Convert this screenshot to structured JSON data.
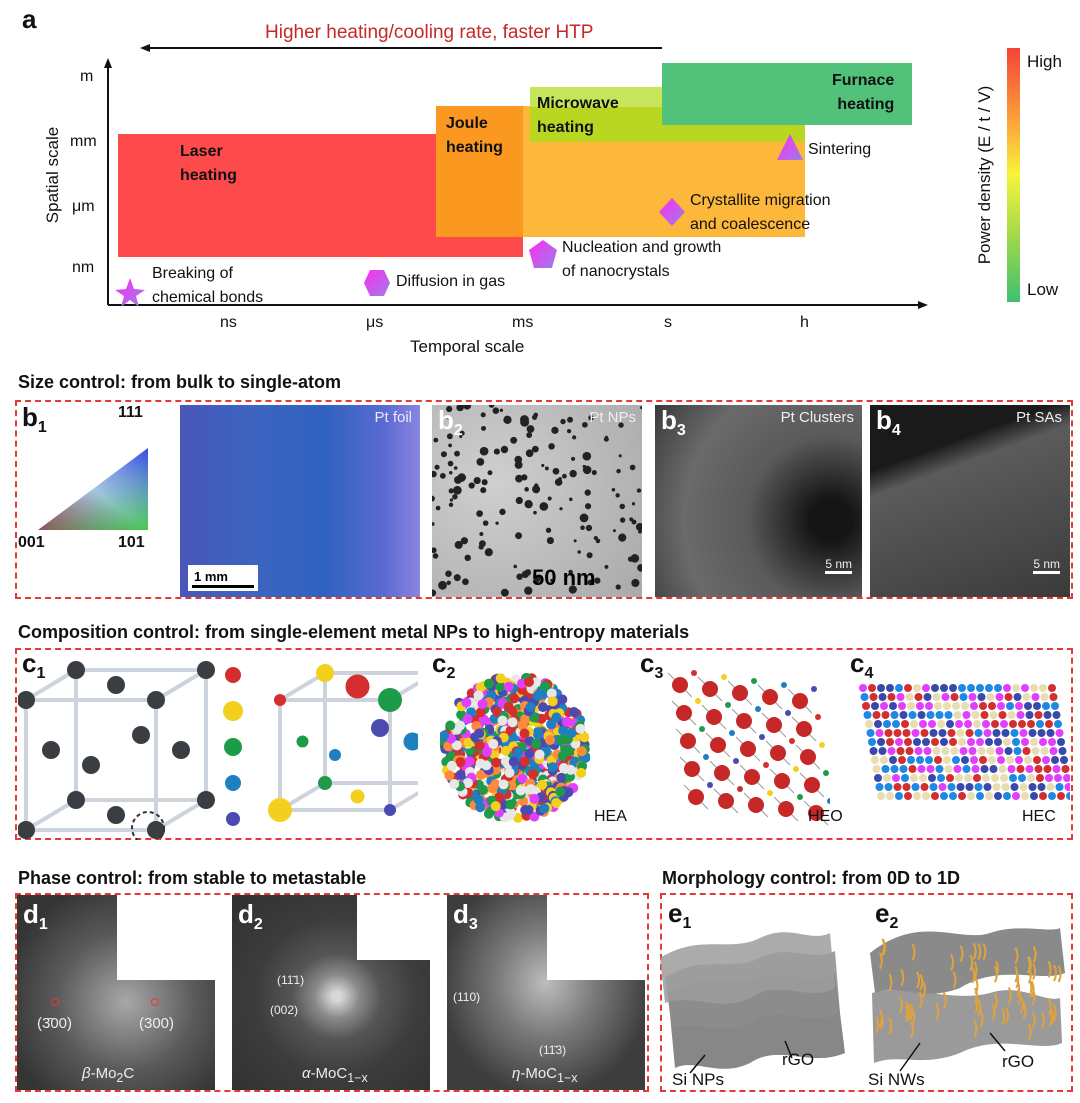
{
  "panel_a": {
    "letter": "a",
    "arrow_label": "Higher heating/cooling rate, faster HTP",
    "y_axis_label": "Spatial scale",
    "x_axis_label": "Temporal scale",
    "y_ticks": [
      "m",
      "mm",
      "μm",
      "nm"
    ],
    "x_ticks": [
      "ns",
      "μs",
      "ms",
      "s",
      "h"
    ],
    "methods": [
      {
        "name": "Laser heating",
        "line1": "Laser",
        "line2": "heating",
        "color": "#fd4b4b"
      },
      {
        "name": "Joule heating",
        "line1": "Joule",
        "line2": "heating",
        "color": "#fb9820"
      },
      {
        "name": "Microwave heating",
        "line1": "Microwave",
        "line2": "heating",
        "color": "#b9d720"
      },
      {
        "name": "Furnace heating",
        "line1": "Furnace",
        "line2": "heating",
        "color": "#52c27a"
      }
    ],
    "processes": [
      {
        "line1": "Breaking of",
        "line2": "chemical bonds",
        "marker": "star"
      },
      {
        "line1": "Diffusion in gas",
        "line2": "",
        "marker": "hexagon"
      },
      {
        "line1": "Nucleation and growth",
        "line2": "of nanocrystals",
        "marker": "pentagon"
      },
      {
        "line1": "Crystallite migration",
        "line2": "and coalescence",
        "marker": "diamond"
      },
      {
        "line1": "Sintering",
        "line2": "",
        "marker": "triangle"
      }
    ],
    "colorbar": {
      "title": "Power density (E / t / V)",
      "high": "High",
      "low": "Low",
      "colors": [
        "#f44336",
        "#fda63a",
        "#f5f53a",
        "#9ed84a",
        "#3fbf73"
      ]
    }
  },
  "panel_b": {
    "title": "Size control: from bulk to single-atom",
    "b1": {
      "letter": "b",
      "sub": "1",
      "ipf": [
        "111",
        "001",
        "101"
      ],
      "caption": "Pt foil",
      "scale": "1 mm"
    },
    "b2": {
      "letter": "b",
      "sub": "2",
      "caption": "Pt NPs",
      "scale": "50 nm"
    },
    "b3": {
      "letter": "b",
      "sub": "3",
      "caption": "Pt Clusters",
      "scale": "5 nm"
    },
    "b4": {
      "letter": "b",
      "sub": "4",
      "caption": "Pt SAs",
      "scale": "5 nm"
    }
  },
  "panel_c": {
    "title": "Composition control: from single-element metal NPs to high-entropy materials",
    "c1": {
      "letter": "c",
      "sub": "1"
    },
    "c2": {
      "letter": "c",
      "sub": "2",
      "caption": "HEA"
    },
    "c3": {
      "letter": "c",
      "sub": "3",
      "caption": "HEO"
    },
    "c4": {
      "letter": "c",
      "sub": "4",
      "caption": "HEC"
    },
    "atom_colors": [
      "#d32f2f",
      "#f4d01e",
      "#1e9b48",
      "#1f7fc1",
      "#4a4ab0",
      "#e7e7e7",
      "#e040fb",
      "#ff8a3d"
    ]
  },
  "panel_d": {
    "title": "Phase control: from stable to metastable",
    "d1": {
      "letter": "d",
      "sub": "1",
      "spots": [
        "(3̄00)",
        "(300)"
      ],
      "caption_pre": "β",
      "caption_main": "-Mo",
      "caption_sub": "2",
      "caption_post": "C"
    },
    "d2": {
      "letter": "d",
      "sub": "2",
      "spots": [
        "(11̄1)",
        "(002)"
      ],
      "caption_pre": "α",
      "caption_main": "-MoC",
      "caption_sub": "1−x",
      "caption_post": ""
    },
    "d3": {
      "letter": "d",
      "sub": "3",
      "spots": [
        "(110)",
        "(11̄3)"
      ],
      "caption_pre": "η",
      "caption_main": "-MoC",
      "caption_sub": "1−x",
      "caption_post": ""
    }
  },
  "panel_e": {
    "title": "Morphology control: from 0D to 1D",
    "e1": {
      "letter": "e",
      "sub": "1",
      "labels": [
        "Si NPs",
        "rGO"
      ]
    },
    "e2": {
      "letter": "e",
      "sub": "2",
      "labels": [
        "Si NWs",
        "rGO"
      ]
    }
  }
}
